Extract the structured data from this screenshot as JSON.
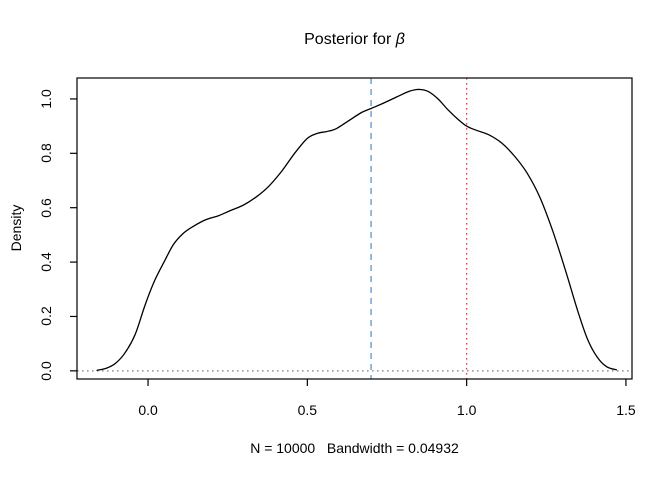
{
  "figure": {
    "title_prefix": "Posterior for ",
    "title_symbol": "β",
    "background_color": "#ffffff"
  },
  "chart_data": {
    "type": "line",
    "title": "Posterior for β",
    "xlabel": "N = 10000   Bandwidth = 0.04932",
    "ylabel": "Density",
    "n": 10000,
    "bandwidth": 0.04932,
    "grid": false,
    "legend": null,
    "xlim": [
      -0.223,
      1.519
    ],
    "ylim": [
      -0.03,
      1.077
    ],
    "x_ticks": [
      0.0,
      0.5,
      1.0,
      1.5
    ],
    "x_tick_labels": [
      "0.0",
      "0.5",
      "1.0",
      "1.5"
    ],
    "y_ticks": [
      0.0,
      0.2,
      0.4,
      0.6,
      0.8,
      1.0
    ],
    "y_tick_labels": [
      "0.0",
      "0.2",
      "0.4",
      "0.6",
      "0.8",
      "1.0"
    ],
    "frame_color": "#000000",
    "series": [
      {
        "name": "posterior-density-curve",
        "color": "#000000",
        "line_style": "solid",
        "points": [
          [
            -0.16,
            0.002
          ],
          [
            -0.13,
            0.01
          ],
          [
            -0.1,
            0.03
          ],
          [
            -0.07,
            0.07
          ],
          [
            -0.04,
            0.135
          ],
          [
            -0.01,
            0.24
          ],
          [
            0.02,
            0.33
          ],
          [
            0.05,
            0.4
          ],
          [
            0.08,
            0.465
          ],
          [
            0.11,
            0.505
          ],
          [
            0.14,
            0.53
          ],
          [
            0.18,
            0.555
          ],
          [
            0.22,
            0.57
          ],
          [
            0.26,
            0.59
          ],
          [
            0.3,
            0.61
          ],
          [
            0.34,
            0.64
          ],
          [
            0.38,
            0.68
          ],
          [
            0.42,
            0.735
          ],
          [
            0.46,
            0.8
          ],
          [
            0.5,
            0.855
          ],
          [
            0.53,
            0.873
          ],
          [
            0.56,
            0.88
          ],
          [
            0.59,
            0.89
          ],
          [
            0.63,
            0.92
          ],
          [
            0.67,
            0.95
          ],
          [
            0.7,
            0.965
          ],
          [
            0.74,
            0.985
          ],
          [
            0.78,
            1.007
          ],
          [
            0.82,
            1.028
          ],
          [
            0.85,
            1.035
          ],
          [
            0.88,
            1.027
          ],
          [
            0.91,
            1.0
          ],
          [
            0.94,
            0.962
          ],
          [
            0.97,
            0.928
          ],
          [
            1.0,
            0.9
          ],
          [
            1.03,
            0.885
          ],
          [
            1.07,
            0.868
          ],
          [
            1.11,
            0.838
          ],
          [
            1.15,
            0.79
          ],
          [
            1.19,
            0.727
          ],
          [
            1.23,
            0.638
          ],
          [
            1.27,
            0.515
          ],
          [
            1.31,
            0.37
          ],
          [
            1.35,
            0.215
          ],
          [
            1.38,
            0.115
          ],
          [
            1.41,
            0.05
          ],
          [
            1.44,
            0.015
          ],
          [
            1.47,
            0.004
          ]
        ]
      }
    ],
    "reference_lines": [
      {
        "name": "vline-dashed-blue",
        "orientation": "vertical",
        "value": 0.7,
        "style": "dashed",
        "color": "#5596cf"
      },
      {
        "name": "vline-dotted-red",
        "orientation": "vertical",
        "value": 1.0,
        "style": "dotted",
        "color": "#cb4b5c"
      },
      {
        "name": "hline-dotted-gray",
        "orientation": "horizontal",
        "value": 0.0,
        "style": "dotted",
        "color": "#7f7f7f"
      }
    ]
  }
}
